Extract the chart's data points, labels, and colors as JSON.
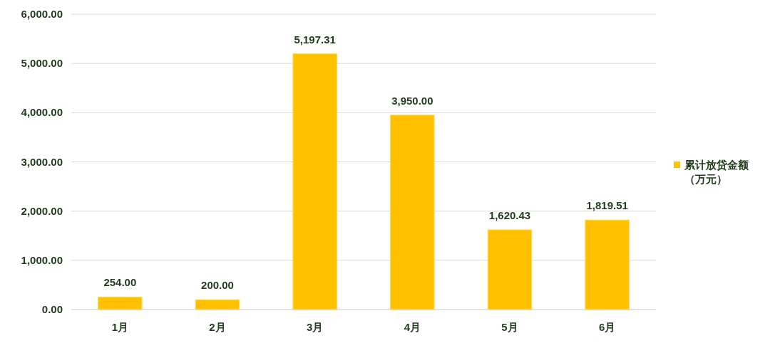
{
  "chart_data": {
    "type": "bar",
    "categories": [
      "1月",
      "2月",
      "3月",
      "4月",
      "5月",
      "6月"
    ],
    "series": [
      {
        "name": "累计放贷金额（万元）",
        "color": "#ffc000",
        "values": [
          254.0,
          200.0,
          5197.31,
          3950.0,
          1620.43,
          1819.51
        ],
        "value_labels": [
          "254.00",
          "200.00",
          "5,197.31",
          "3,950.00",
          "1,620.43",
          "1,819.51"
        ]
      }
    ],
    "ylim": [
      0,
      6000
    ],
    "yticks": [
      {
        "value": 0,
        "label": "0.00"
      },
      {
        "value": 1000,
        "label": "1,000.00"
      },
      {
        "value": 2000,
        "label": "2,000.00"
      },
      {
        "value": 3000,
        "label": "3,000.00"
      },
      {
        "value": 4000,
        "label": "4,000.00"
      },
      {
        "value": 5000,
        "label": "5,000.00"
      },
      {
        "value": 6000,
        "label": "6,000.00"
      }
    ],
    "grid": "y",
    "legend": "right"
  }
}
